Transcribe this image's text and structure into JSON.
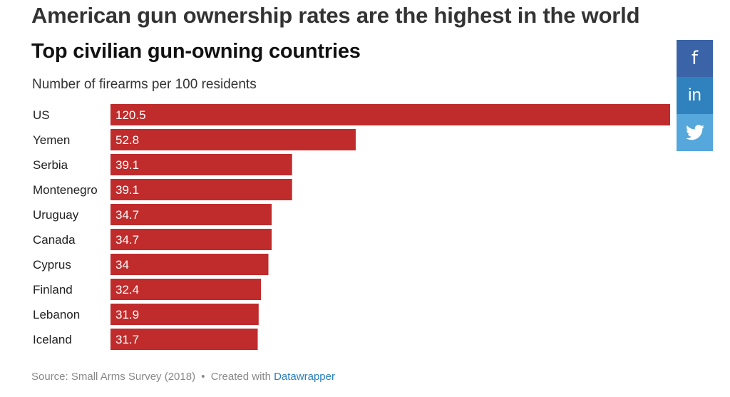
{
  "header": {
    "headline": "American gun ownership rates are the highest in the world"
  },
  "chart_data": {
    "type": "bar",
    "orientation": "horizontal",
    "title": "Top civilian gun-owning countries",
    "subtitle": "Number of firearms per 100 residents",
    "categories": [
      "US",
      "Yemen",
      "Serbia",
      "Montenegro",
      "Uruguay",
      "Canada",
      "Cyprus",
      "Finland",
      "Lebanon",
      "Iceland"
    ],
    "values": [
      120.5,
      52.8,
      39.1,
      39.1,
      34.7,
      34.7,
      34,
      32.4,
      31.9,
      31.7
    ],
    "value_labels": [
      "120.5",
      "52.8",
      "39.1",
      "39.1",
      "34.7",
      "34.7",
      "34",
      "32.4",
      "31.9",
      "31.7"
    ],
    "xlim": [
      0,
      120.5
    ],
    "bar_color": "#c02b2b",
    "grid": false,
    "legend": "none"
  },
  "footer": {
    "source": "Source: Small Arms Survey (2018)",
    "separator": "•",
    "created_with": "Created with",
    "tool": "Datawrapper"
  },
  "share": {
    "colors": {
      "facebook": "#3b64a8",
      "linkedin": "#2f82bd",
      "twitter": "#55a7dc"
    },
    "icons": [
      "facebook-icon",
      "linkedin-icon",
      "twitter-icon"
    ]
  }
}
